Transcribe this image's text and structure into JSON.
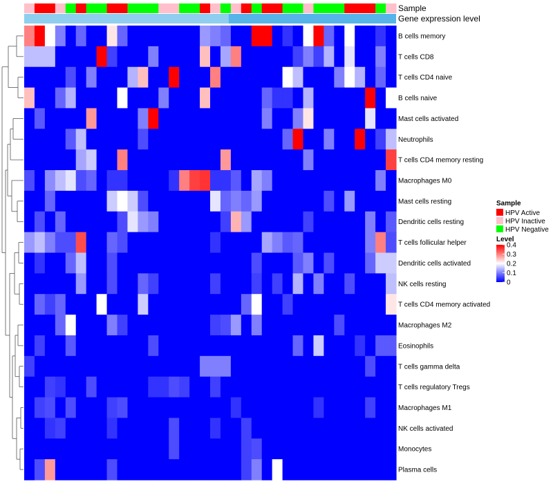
{
  "chart_data": {
    "type": "heatmap",
    "annotation_tracks": [
      "Sample",
      "Gene expression level"
    ],
    "rows": [
      "B cells memory",
      "T cells CD8",
      "T cells CD4 naive",
      "B cells naive",
      "Mast cells activated",
      "Neutrophils",
      "T cells CD4 memory resting",
      "Macrophages M0",
      "Mast cells resting",
      "Dendritic cells resting",
      "T cells follicular helper",
      "Dendritic cells activated",
      "NK cells resting",
      "T cells CD4 memory activated",
      "Macrophages M2",
      "Eosinophils",
      "T cells gamma delta",
      "T cells regulatory  Tregs",
      "Macrophages M1",
      "NK cells activated",
      "Monocytes",
      "Plasma cells"
    ],
    "sample_groups": [
      "Inactive",
      "Active",
      "Active",
      "Inactive",
      "Negative",
      "Active",
      "Negative",
      "Negative",
      "Active",
      "Active",
      "Negative",
      "Negative",
      "Negative",
      "Inactive",
      "Inactive",
      "Negative",
      "Negative",
      "Active",
      "Inactive",
      "Negative",
      "Inactive",
      "Active",
      "Negative",
      "Active",
      "Active",
      "Negative",
      "Negative",
      "Inactive",
      "Negative",
      "Negative",
      "Negative",
      "Active",
      "Active",
      "Active",
      "Negative",
      "Inactive"
    ],
    "values": [
      [
        0.3,
        0.4,
        0.2,
        0.1,
        0.0,
        0.08,
        0.0,
        0.0,
        0.22,
        0.08,
        0.0,
        0.0,
        0.0,
        0.0,
        0.0,
        0.0,
        0.0,
        0.12,
        0.1,
        0.08,
        0.0,
        0.0,
        0.4,
        0.4,
        0.0,
        0.04,
        0.0,
        0.2,
        0.4,
        0.08,
        0.0,
        0.2,
        0.0,
        0.0,
        0.04,
        0.0
      ],
      [
        0.15,
        0.15,
        0.15,
        0.0,
        0.0,
        0.0,
        0.0,
        0.4,
        0.05,
        0.0,
        0.0,
        0.0,
        0.1,
        0.0,
        0.0,
        0.0,
        0.0,
        0.25,
        0.0,
        0.13,
        0.3,
        0.0,
        0.0,
        0.0,
        0.0,
        0.0,
        0.05,
        0.1,
        0.05,
        0.14,
        0.0,
        0.18,
        0.0,
        0.0,
        0.1,
        0.0
      ],
      [
        0.0,
        0.0,
        0.0,
        0.0,
        0.06,
        0.0,
        0.1,
        0.0,
        0.0,
        0.0,
        0.14,
        0.25,
        0.0,
        0.0,
        0.4,
        0.0,
        0.0,
        0.0,
        0.3,
        0.0,
        0.0,
        0.0,
        0.0,
        0.0,
        0.0,
        0.2,
        0.15,
        0.0,
        0.0,
        0.0,
        0.1,
        0.2,
        0.14,
        0.0,
        0.08,
        0.0
      ],
      [
        0.25,
        0.0,
        0.0,
        0.08,
        0.14,
        0.0,
        0.0,
        0.0,
        0.0,
        0.2,
        0.0,
        0.0,
        0.0,
        0.1,
        0.0,
        0.0,
        0.0,
        0.25,
        0.0,
        0.0,
        0.0,
        0.0,
        0.0,
        0.08,
        0.04,
        0.04,
        0.0,
        0.14,
        0.0,
        0.0,
        0.0,
        0.0,
        0.0,
        0.4,
        0.0,
        0.2
      ],
      [
        0.0,
        0.07,
        0.0,
        0.0,
        0.0,
        0.0,
        0.28,
        0.0,
        0.0,
        0.0,
        0.0,
        0.1,
        0.4,
        0.0,
        0.0,
        0.0,
        0.0,
        0.0,
        0.0,
        0.0,
        0.0,
        0.0,
        0.0,
        0.1,
        0.0,
        0.0,
        0.1,
        0.22,
        0.0,
        0.0,
        0.0,
        0.0,
        0.0,
        0.18,
        0.0,
        0.0
      ],
      [
        0.0,
        0.0,
        0.0,
        0.0,
        0.07,
        0.15,
        0.0,
        0.0,
        0.0,
        0.0,
        0.0,
        0.06,
        0.0,
        0.0,
        0.0,
        0.0,
        0.0,
        0.0,
        0.0,
        0.0,
        0.0,
        0.0,
        0.0,
        0.0,
        0.0,
        0.08,
        0.4,
        0.0,
        0.0,
        0.1,
        0.0,
        0.0,
        0.4,
        0.0,
        0.05,
        0.15
      ],
      [
        0.0,
        0.0,
        0.0,
        0.0,
        0.0,
        0.13,
        0.16,
        0.0,
        0.0,
        0.3,
        0.0,
        0.0,
        0.0,
        0.0,
        0.0,
        0.0,
        0.0,
        0.0,
        0.0,
        0.28,
        0.0,
        0.0,
        0.0,
        0.0,
        0.0,
        0.0,
        0.0,
        0.1,
        0.0,
        0.0,
        0.0,
        0.0,
        0.0,
        0.0,
        0.0,
        0.35
      ],
      [
        0.06,
        0.0,
        0.11,
        0.15,
        0.18,
        0.06,
        0.08,
        0.0,
        0.04,
        0.04,
        0.0,
        0.0,
        0.0,
        0.0,
        0.04,
        0.3,
        0.35,
        0.36,
        0.04,
        0.04,
        0.07,
        0.0,
        0.13,
        0.1,
        0.0,
        0.0,
        0.0,
        0.0,
        0.0,
        0.0,
        0.0,
        0.0,
        0.0,
        0.0,
        0.1,
        0.0
      ],
      [
        0.0,
        0.0,
        0.08,
        0.0,
        0.0,
        0.0,
        0.0,
        0.0,
        0.16,
        0.2,
        0.16,
        0.06,
        0.0,
        0.0,
        0.0,
        0.0,
        0.0,
        0.0,
        0.18,
        0.08,
        0.1,
        0.08,
        0.12,
        0.0,
        0.0,
        0.0,
        0.0,
        0.0,
        0.0,
        0.06,
        0.0,
        0.12,
        0.0,
        0.0,
        0.0,
        0.0
      ],
      [
        0.0,
        0.06,
        0.0,
        0.08,
        0.0,
        0.0,
        0.0,
        0.0,
        0.0,
        0.06,
        0.18,
        0.12,
        0.1,
        0.0,
        0.0,
        0.0,
        0.0,
        0.0,
        0.0,
        0.05,
        0.26,
        0.12,
        0.0,
        0.0,
        0.0,
        0.0,
        0.0,
        0.05,
        0.0,
        0.0,
        0.0,
        0.0,
        0.0,
        0.1,
        0.0,
        0.07
      ],
      [
        0.12,
        0.15,
        0.1,
        0.06,
        0.06,
        0.34,
        0.0,
        0.0,
        0.08,
        0.06,
        0.0,
        0.0,
        0.0,
        0.0,
        0.0,
        0.0,
        0.0,
        0.0,
        0.04,
        0.0,
        0.0,
        0.0,
        0.0,
        0.13,
        0.1,
        0.07,
        0.08,
        0.0,
        0.0,
        0.0,
        0.0,
        0.0,
        0.0,
        0.1,
        0.3,
        0.06
      ],
      [
        0.0,
        0.04,
        0.0,
        0.0,
        0.08,
        0.15,
        0.0,
        0.0,
        0.06,
        0.0,
        0.0,
        0.0,
        0.0,
        0.0,
        0.0,
        0.0,
        0.0,
        0.0,
        0.0,
        0.0,
        0.0,
        0.0,
        0.06,
        0.0,
        0.0,
        0.0,
        0.07,
        0.1,
        0.0,
        0.06,
        0.0,
        0.0,
        0.0,
        0.08,
        0.16,
        0.16
      ],
      [
        0.0,
        0.0,
        0.0,
        0.0,
        0.0,
        0.12,
        0.0,
        0.0,
        0.06,
        0.0,
        0.0,
        0.08,
        0.05,
        0.0,
        0.0,
        0.0,
        0.0,
        0.0,
        0.05,
        0.0,
        0.0,
        0.0,
        0.05,
        0.0,
        0.05,
        0.0,
        0.14,
        0.0,
        0.1,
        0.0,
        0.0,
        0.06,
        0.0,
        0.0,
        0.0,
        0.15
      ],
      [
        0.0,
        0.08,
        0.05,
        0.08,
        0.0,
        0.0,
        0.0,
        0.2,
        0.0,
        0.0,
        0.0,
        0.16,
        0.0,
        0.0,
        0.0,
        0.0,
        0.0,
        0.0,
        0.0,
        0.0,
        0.0,
        0.08,
        0.2,
        0.0,
        0.0,
        0.05,
        0.0,
        0.0,
        0.0,
        0.0,
        0.0,
        0.0,
        0.0,
        0.0,
        0.0,
        0.22
      ],
      [
        0.0,
        0.0,
        0.0,
        0.08,
        0.2,
        0.0,
        0.0,
        0.0,
        0.1,
        0.05,
        0.0,
        0.0,
        0.0,
        0.0,
        0.0,
        0.0,
        0.0,
        0.0,
        0.05,
        0.06,
        0.12,
        0.0,
        0.1,
        0.0,
        0.0,
        0.0,
        0.0,
        0.0,
        0.0,
        0.0,
        0.06,
        0.0,
        0.0,
        0.0,
        0.0,
        0.0
      ],
      [
        0.0,
        0.05,
        0.0,
        0.0,
        0.07,
        0.0,
        0.0,
        0.0,
        0.0,
        0.0,
        0.0,
        0.0,
        0.06,
        0.0,
        0.0,
        0.0,
        0.0,
        0.0,
        0.0,
        0.0,
        0.0,
        0.0,
        0.0,
        0.0,
        0.0,
        0.0,
        0.08,
        0.0,
        0.16,
        0.0,
        0.0,
        0.0,
        0.04,
        0.0,
        0.07,
        0.07
      ],
      [
        0.05,
        0.0,
        0.0,
        0.0,
        0.0,
        0.0,
        0.0,
        0.0,
        0.0,
        0.0,
        0.0,
        0.0,
        0.0,
        0.0,
        0.0,
        0.0,
        0.0,
        0.1,
        0.1,
        0.1,
        0.0,
        0.0,
        0.0,
        0.0,
        0.0,
        0.0,
        0.0,
        0.0,
        0.0,
        0.0,
        0.0,
        0.0,
        0.0,
        0.06,
        0.0,
        0.0
      ],
      [
        0.0,
        0.0,
        0.05,
        0.04,
        0.0,
        0.0,
        0.06,
        0.0,
        0.0,
        0.0,
        0.0,
        0.0,
        0.04,
        0.04,
        0.06,
        0.05,
        0.0,
        0.0,
        0.05,
        0.0,
        0.0,
        0.0,
        0.0,
        0.0,
        0.0,
        0.0,
        0.0,
        0.0,
        0.0,
        0.0,
        0.0,
        0.0,
        0.0,
        0.0,
        0.0,
        0.0
      ],
      [
        0.0,
        0.05,
        0.06,
        0.0,
        0.06,
        0.0,
        0.0,
        0.0,
        0.05,
        0.06,
        0.0,
        0.0,
        0.0,
        0.0,
        0.0,
        0.0,
        0.0,
        0.0,
        0.0,
        0.0,
        0.04,
        0.0,
        0.0,
        0.0,
        0.0,
        0.0,
        0.0,
        0.0,
        0.04,
        0.0,
        0.0,
        0.0,
        0.0,
        0.05,
        0.0,
        0.0
      ],
      [
        0.0,
        0.0,
        0.04,
        0.05,
        0.0,
        0.0,
        0.0,
        0.0,
        0.04,
        0.0,
        0.0,
        0.0,
        0.0,
        0.0,
        0.06,
        0.0,
        0.0,
        0.0,
        0.04,
        0.0,
        0.0,
        0.05,
        0.0,
        0.0,
        0.0,
        0.0,
        0.0,
        0.0,
        0.0,
        0.0,
        0.0,
        0.0,
        0.0,
        0.0,
        0.0,
        0.0
      ],
      [
        0.0,
        0.0,
        0.0,
        0.0,
        0.0,
        0.0,
        0.0,
        0.0,
        0.0,
        0.0,
        0.0,
        0.0,
        0.0,
        0.0,
        0.06,
        0.0,
        0.0,
        0.0,
        0.0,
        0.0,
        0.0,
        0.05,
        0.06,
        0.0,
        0.0,
        0.0,
        0.0,
        0.0,
        0.0,
        0.0,
        0.0,
        0.0,
        0.0,
        0.0,
        0.0,
        0.0
      ],
      [
        0.0,
        0.06,
        0.28,
        0.0,
        0.0,
        0.0,
        0.0,
        0.0,
        0.06,
        0.0,
        0.0,
        0.0,
        0.0,
        0.0,
        0.0,
        0.0,
        0.0,
        0.0,
        0.0,
        0.0,
        0.0,
        0.05,
        0.1,
        0.0,
        0.2,
        0.0,
        0.0,
        0.0,
        0.0,
        0.0,
        0.0,
        0.0,
        0.0,
        0.0,
        0.0,
        0.0
      ]
    ],
    "legend": {
      "sample_title": "Sample",
      "sample_items": [
        {
          "key": "Active",
          "label": "HPV Active",
          "color": "#ff0000"
        },
        {
          "key": "Inactive",
          "label": "HPV Inactive",
          "color": "#ffc0cb"
        },
        {
          "key": "Negative",
          "label": "HPV Negative",
          "color": "#00ff00"
        }
      ],
      "level_title": "Level",
      "level_ticks": [
        {
          "value": 0.4,
          "label": "0.4"
        },
        {
          "value": 0.3,
          "label": "0.3"
        },
        {
          "value": 0.2,
          "label": "0.2"
        },
        {
          "value": 0.1,
          "label": "0.1"
        },
        {
          "value": 0.0,
          "label": "0"
        }
      ],
      "level_range": [
        0,
        0.4
      ]
    },
    "colors": {
      "low": "#0000ff",
      "mid": "#ffffff",
      "high": "#ff0000",
      "expression_track": "#56b4e9"
    }
  }
}
